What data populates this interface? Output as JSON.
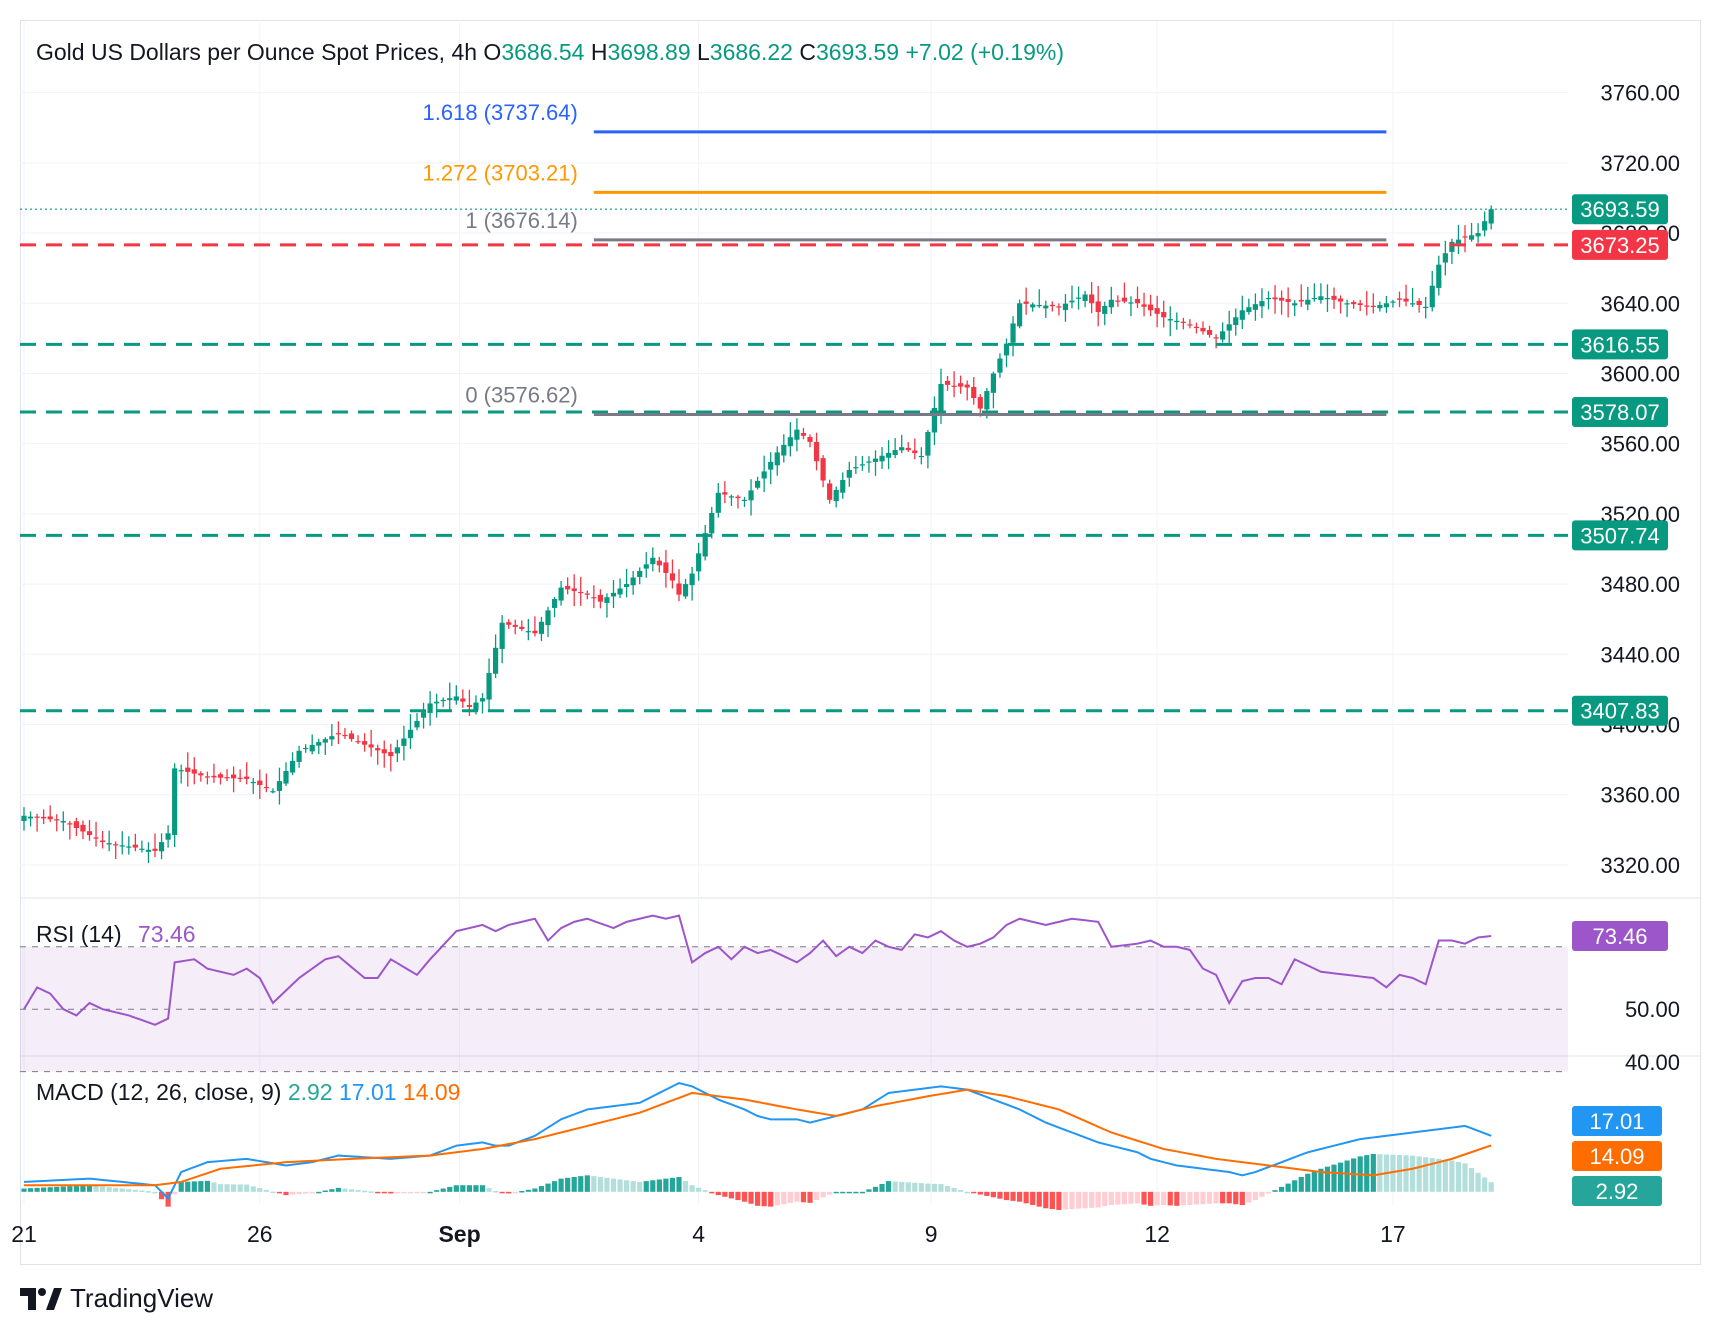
{
  "header": {
    "title": "Gold US Dollars per Ounce Spot Prices, 4h",
    "o_label": "O",
    "o_value": "3686.54",
    "h_label": "H",
    "h_value": "3698.89",
    "l_label": "L",
    "l_value": "3686.22",
    "c_label": "C",
    "c_value": "3693.59",
    "change": "+7.02 (+0.19%)"
  },
  "colors": {
    "up": "#089981",
    "down": "#f23645",
    "fib_1618": "#2962ff",
    "fib_1272": "#ff9800",
    "fib_levels": "#787b86",
    "support": "#089981",
    "resistance": "#f23645",
    "rsi": "#9c56c9",
    "macd": "#2196f3",
    "signal": "#ff6d00"
  },
  "chart_data": [
    {
      "type": "candlestick",
      "ylim": [
        3300,
        3790
      ],
      "y_ticks": [
        "3760.00",
        "3720.00",
        "3680.00",
        "3640.00",
        "3600.00",
        "3560.00",
        "3520.00",
        "3480.00",
        "3440.00",
        "3400.00",
        "3360.00",
        "3320.00"
      ],
      "x_ticks": [
        "21",
        "26",
        "Sep",
        "4",
        "9",
        "12",
        "17"
      ],
      "x_tick_positions": [
        0,
        36,
        66.5,
        103,
        138.5,
        173,
        209
      ],
      "candle_count": 225,
      "anchors": [
        [
          0,
          3348
        ],
        [
          6,
          3345
        ],
        [
          12,
          3333
        ],
        [
          20,
          3328
        ],
        [
          22,
          3338
        ],
        [
          23,
          3375
        ],
        [
          28,
          3370
        ],
        [
          34,
          3369
        ],
        [
          38,
          3362
        ],
        [
          42,
          3385
        ],
        [
          48,
          3395
        ],
        [
          56,
          3382
        ],
        [
          62,
          3412
        ],
        [
          66,
          3416
        ],
        [
          68,
          3410
        ],
        [
          70,
          3415
        ],
        [
          73,
          3458
        ],
        [
          78,
          3452
        ],
        [
          82,
          3478
        ],
        [
          86,
          3474
        ],
        [
          88,
          3470
        ],
        [
          92,
          3480
        ],
        [
          96,
          3495
        ],
        [
          99,
          3482
        ],
        [
          100,
          3474
        ],
        [
          102,
          3486
        ],
        [
          106,
          3532
        ],
        [
          110,
          3528
        ],
        [
          115,
          3555
        ],
        [
          118,
          3568
        ],
        [
          120,
          3561
        ],
        [
          123,
          3528
        ],
        [
          126,
          3545
        ],
        [
          134,
          3558
        ],
        [
          137,
          3553
        ],
        [
          140,
          3594
        ],
        [
          144,
          3592
        ],
        [
          146,
          3580
        ],
        [
          148,
          3600
        ],
        [
          150,
          3617
        ],
        [
          152,
          3640
        ],
        [
          158,
          3638
        ],
        [
          162,
          3645
        ],
        [
          164,
          3635
        ],
        [
          166,
          3642
        ],
        [
          170,
          3640
        ],
        [
          174,
          3632
        ],
        [
          178,
          3628
        ],
        [
          182,
          3620
        ],
        [
          186,
          3636
        ],
        [
          190,
          3643
        ],
        [
          194,
          3640
        ],
        [
          198,
          3644
        ],
        [
          202,
          3640
        ],
        [
          206,
          3638
        ],
        [
          210,
          3642
        ],
        [
          214,
          3638
        ],
        [
          216,
          3662
        ],
        [
          218,
          3675
        ],
        [
          222,
          3680
        ],
        [
          224,
          3693.59
        ]
      ],
      "levels": [
        {
          "label": "1.618 (3737.64)",
          "value": 3737.64,
          "color": "#2962ff",
          "style": "solid"
        },
        {
          "label": "1.272 (3703.21)",
          "value": 3703.21,
          "color": "#ff9800",
          "style": "solid"
        },
        {
          "label": "1 (3676.14)",
          "value": 3676.14,
          "color": "#787b86",
          "style": "solid"
        },
        {
          "label": "0 (3576.62)",
          "value": 3576.62,
          "color": "#787b86",
          "style": "solid"
        }
      ],
      "horizontal_lines": [
        {
          "value": 3673.25,
          "label": "3673.25",
          "color": "#f23645"
        },
        {
          "value": 3616.55,
          "label": "3616.55",
          "color": "#089981"
        },
        {
          "value": 3578.07,
          "label": "3578.07",
          "color": "#089981"
        },
        {
          "value": 3507.74,
          "label": "3507.74",
          "color": "#089981"
        },
        {
          "value": 3407.83,
          "label": "3407.83",
          "color": "#089981"
        }
      ],
      "last_price": {
        "value": 3693.59,
        "label": "3693.59",
        "color": "#089981"
      }
    },
    {
      "type": "line",
      "title": "RSI (14)",
      "value_label": "73.46",
      "ylim": [
        35,
        85
      ],
      "band": [
        30,
        70
      ],
      "ticks": [
        "50.00",
        "40.00"
      ],
      "anchors": [
        [
          0,
          50
        ],
        [
          2,
          57
        ],
        [
          4,
          55
        ],
        [
          6,
          50
        ],
        [
          8,
          48
        ],
        [
          10,
          52
        ],
        [
          12,
          50
        ],
        [
          16,
          48
        ],
        [
          20,
          45
        ],
        [
          22,
          47
        ],
        [
          23,
          65
        ],
        [
          26,
          66
        ],
        [
          28,
          63
        ],
        [
          32,
          61
        ],
        [
          34,
          63
        ],
        [
          36,
          60
        ],
        [
          38,
          52
        ],
        [
          40,
          56
        ],
        [
          42,
          60
        ],
        [
          46,
          66
        ],
        [
          48,
          67
        ],
        [
          52,
          60
        ],
        [
          54,
          60
        ],
        [
          56,
          66
        ],
        [
          60,
          61
        ],
        [
          62,
          66
        ],
        [
          66,
          75
        ],
        [
          70,
          77
        ],
        [
          72,
          75
        ],
        [
          74,
          77
        ],
        [
          78,
          79
        ],
        [
          80,
          72
        ],
        [
          82,
          76
        ],
        [
          84,
          78
        ],
        [
          86,
          79
        ],
        [
          90,
          76
        ],
        [
          92,
          78
        ],
        [
          96,
          80
        ],
        [
          98,
          79
        ],
        [
          100,
          80
        ],
        [
          102,
          65
        ],
        [
          104,
          68
        ],
        [
          106,
          70
        ],
        [
          108,
          66
        ],
        [
          110,
          70
        ],
        [
          112,
          68
        ],
        [
          114,
          69
        ],
        [
          116,
          67
        ],
        [
          118,
          65
        ],
        [
          120,
          68
        ],
        [
          122,
          72
        ],
        [
          124,
          67
        ],
        [
          126,
          70
        ],
        [
          128,
          68
        ],
        [
          130,
          72
        ],
        [
          132,
          70
        ],
        [
          134,
          69
        ],
        [
          136,
          74
        ],
        [
          138,
          73
        ],
        [
          140,
          75
        ],
        [
          142,
          72
        ],
        [
          144,
          70
        ],
        [
          146,
          71
        ],
        [
          148,
          73
        ],
        [
          150,
          77
        ],
        [
          152,
          79
        ],
        [
          156,
          77
        ],
        [
          160,
          79
        ],
        [
          164,
          78
        ],
        [
          166,
          70
        ],
        [
          170,
          71
        ],
        [
          172,
          72
        ],
        [
          174,
          70
        ],
        [
          176,
          70
        ],
        [
          178,
          69
        ],
        [
          180,
          63
        ],
        [
          182,
          61
        ],
        [
          184,
          52
        ],
        [
          186,
          59
        ],
        [
          188,
          60
        ],
        [
          190,
          60
        ],
        [
          192,
          58
        ],
        [
          194,
          66
        ],
        [
          196,
          64
        ],
        [
          198,
          62
        ],
        [
          202,
          61
        ],
        [
          206,
          60
        ],
        [
          208,
          57
        ],
        [
          210,
          61
        ],
        [
          212,
          60
        ],
        [
          214,
          58
        ],
        [
          216,
          72
        ],
        [
          218,
          72
        ],
        [
          220,
          71
        ],
        [
          222,
          73
        ],
        [
          224,
          73.46
        ]
      ]
    },
    {
      "type": "line",
      "title": "MACD (12, 26, close, 9)",
      "values_label": {
        "hist": "2.92",
        "macd": "17.01",
        "signal": "14.09"
      },
      "ylim": [
        -4,
        40
      ],
      "anchors_macd": [
        [
          0,
          3
        ],
        [
          10,
          4
        ],
        [
          20,
          2
        ],
        [
          22,
          -2
        ],
        [
          24,
          6
        ],
        [
          28,
          9
        ],
        [
          34,
          10
        ],
        [
          40,
          8
        ],
        [
          44,
          9
        ],
        [
          48,
          11
        ],
        [
          56,
          10
        ],
        [
          62,
          11
        ],
        [
          66,
          14
        ],
        [
          70,
          15
        ],
        [
          72,
          14
        ],
        [
          74,
          14
        ],
        [
          78,
          17
        ],
        [
          82,
          22
        ],
        [
          86,
          25
        ],
        [
          90,
          26
        ],
        [
          94,
          27
        ],
        [
          98,
          31
        ],
        [
          100,
          33
        ],
        [
          102,
          32
        ],
        [
          106,
          28
        ],
        [
          110,
          25
        ],
        [
          112,
          23
        ],
        [
          114,
          22
        ],
        [
          118,
          22
        ],
        [
          120,
          21
        ],
        [
          124,
          23
        ],
        [
          128,
          25
        ],
        [
          132,
          30
        ],
        [
          136,
          31
        ],
        [
          140,
          32
        ],
        [
          144,
          31
        ],
        [
          148,
          28
        ],
        [
          152,
          25
        ],
        [
          156,
          21
        ],
        [
          160,
          18
        ],
        [
          164,
          15
        ],
        [
          168,
          13
        ],
        [
          170,
          12
        ],
        [
          172,
          10
        ],
        [
          176,
          8
        ],
        [
          180,
          7
        ],
        [
          184,
          6
        ],
        [
          186,
          5
        ],
        [
          188,
          6
        ],
        [
          192,
          9
        ],
        [
          196,
          12
        ],
        [
          200,
          14
        ],
        [
          204,
          16
        ],
        [
          208,
          17
        ],
        [
          212,
          18
        ],
        [
          216,
          19
        ],
        [
          220,
          20
        ],
        [
          224,
          17.01
        ]
      ],
      "anchors_signal": [
        [
          0,
          2
        ],
        [
          20,
          2
        ],
        [
          24,
          3
        ],
        [
          30,
          7
        ],
        [
          40,
          9
        ],
        [
          50,
          10
        ],
        [
          62,
          11
        ],
        [
          70,
          13
        ],
        [
          78,
          16
        ],
        [
          86,
          20
        ],
        [
          94,
          24
        ],
        [
          102,
          30
        ],
        [
          110,
          28
        ],
        [
          118,
          25
        ],
        [
          124,
          23
        ],
        [
          130,
          26
        ],
        [
          138,
          29
        ],
        [
          144,
          31
        ],
        [
          150,
          29
        ],
        [
          158,
          25
        ],
        [
          166,
          18
        ],
        [
          174,
          13
        ],
        [
          182,
          10
        ],
        [
          190,
          8
        ],
        [
          198,
          6
        ],
        [
          206,
          5
        ],
        [
          212,
          7
        ],
        [
          218,
          10
        ],
        [
          224,
          14.09
        ]
      ],
      "last_labels": [
        {
          "label": "17.01",
          "color": "#2196f3"
        },
        {
          "label": "14.09",
          "color": "#ff6d00"
        },
        {
          "label": "2.92",
          "color": "#26a69a"
        }
      ]
    }
  ],
  "brand": {
    "name": "TradingView",
    "logo_icon": "tradingview-logo-icon"
  }
}
